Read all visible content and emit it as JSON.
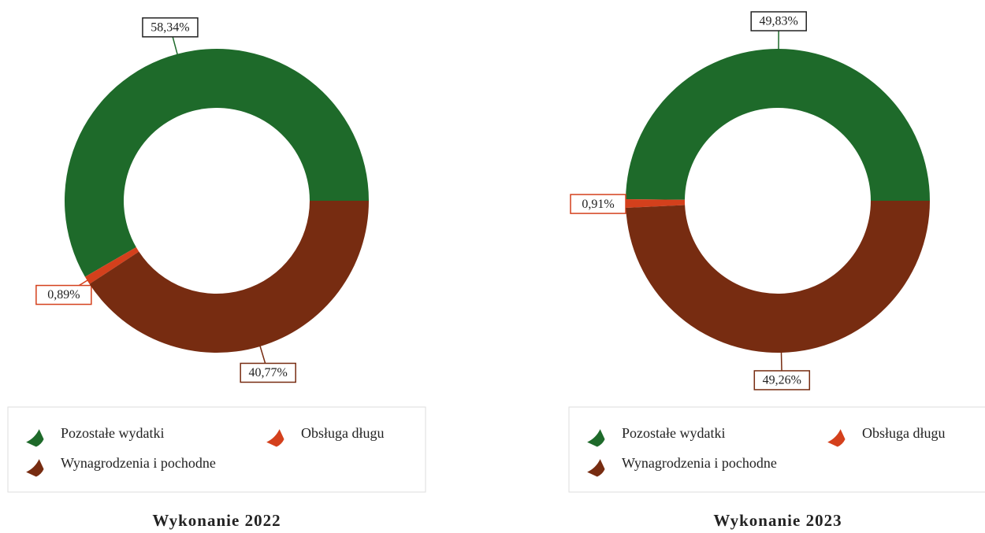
{
  "chart_data": [
    {
      "type": "pie",
      "title": "Wykonanie 2022",
      "categories": [
        "Pozostałe wydatki",
        "Obsługa długu",
        "Wynagrodzenia i pochodne"
      ],
      "values": [
        58.34,
        0.89,
        40.77
      ],
      "value_labels": [
        "58,34%",
        "0,89%",
        "40,77%"
      ],
      "colors": [
        "#1e6a2a",
        "#d4401c",
        "#772c11"
      ]
    },
    {
      "type": "pie",
      "title": "Wykonanie 2023",
      "categories": [
        "Pozostałe wydatki",
        "Obsługa długu",
        "Wynagrodzenia i pochodne"
      ],
      "values": [
        49.83,
        0.91,
        49.26
      ],
      "value_labels": [
        "49,83%",
        "0,91%",
        "49,26%"
      ],
      "colors": [
        "#1e6a2a",
        "#d4401c",
        "#772c11"
      ]
    }
  ]
}
